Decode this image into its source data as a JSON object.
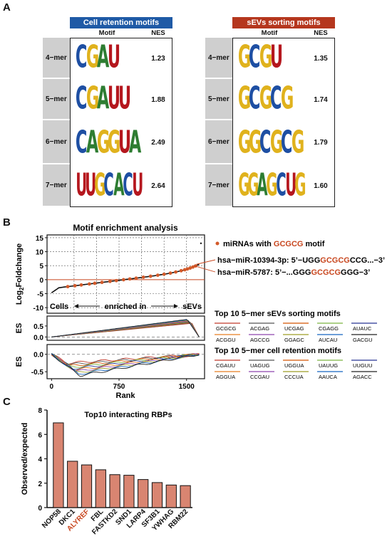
{
  "panels": {
    "a": "A",
    "b": "B",
    "c": "C"
  },
  "colors": {
    "A": "#2e7d32",
    "C": "#1e4fa3",
    "G": "#e0b21d",
    "U": "#b5171e",
    "highlight": "#c8461e"
  },
  "motif_tables": [
    {
      "title": "Cell retention motifs",
      "title_color": "#1f5aa6",
      "col_motif": "Motif",
      "col_nes": "NES",
      "rows": [
        {
          "k": "4−mer",
          "motif": "CGAU",
          "nes": "1.23"
        },
        {
          "k": "5−mer",
          "motif": "CGAUU",
          "nes": "1.88"
        },
        {
          "k": "6−mer",
          "motif": "CAGGUA",
          "nes": "2.49"
        },
        {
          "k": "7−mer",
          "motif": "UUGCACU",
          "nes": "2.64"
        }
      ]
    },
    {
      "title": "sEVs sorting motifs",
      "title_color": "#b5371e",
      "col_motif": "Motif",
      "col_nes": "NES",
      "rows": [
        {
          "k": "4−mer",
          "motif": "GCGU",
          "nes": "1.35"
        },
        {
          "k": "5−mer",
          "motif": "GCGCG",
          "nes": "1.74"
        },
        {
          "k": "6−mer",
          "motif": "GGCGCG",
          "nes": "1.79"
        },
        {
          "k": "7−mer",
          "motif": "GGAGCUG",
          "nes": "1.60"
        }
      ]
    }
  ],
  "enrichment": {
    "title": "Motif enrichment analysis",
    "ylabel_main": "Log",
    "ylabel_sub": "2",
    "ylabel_rest": "Foldchange",
    "yticks": [
      "15",
      "10",
      "5",
      "0",
      "-5",
      "-10"
    ],
    "ylim": [
      -12,
      16
    ],
    "region_left": "Cells",
    "region_mid": "enriched in",
    "region_right": "sEVs",
    "legend_prefix": "miRNAs with ",
    "legend_motif": "GCGCG",
    "legend_suffix": " motif",
    "annot1_pre": "hsa−miR-10394-3p: 5’−UGG",
    "annot1_motif": "GCGCG",
    "annot1_post": "CCG...−3’",
    "annot2_pre": "hsa−miR-5787: 5’−...GGG",
    "annot2_motif": "GCGCG",
    "annot2_post": "GGG−3’"
  },
  "es_sevs": {
    "ylabel": "ES",
    "yticks": [
      "0.5",
      "0.0"
    ],
    "legend_title": "Top 10 5−mer sEVs sorting motifs",
    "motifs": [
      {
        "name": "GCGCG",
        "color": "#c0392b"
      },
      {
        "name": "ACGAG",
        "color": "#555555"
      },
      {
        "name": "UCGAG",
        "color": "#d35400"
      },
      {
        "name": "CGAGG",
        "color": "#7cb342"
      },
      {
        "name": "AUAUC",
        "color": "#283593"
      },
      {
        "name": "ACGGU",
        "color": "#e67e22"
      },
      {
        "name": "AGCCG",
        "color": "#8e44ad"
      },
      {
        "name": "GGAGC",
        "color": "#9e9d24"
      },
      {
        "name": "AUCAU",
        "color": "#1565c0"
      },
      {
        "name": "GACGU",
        "color": "#212121"
      }
    ]
  },
  "es_cells": {
    "ylabel": "ES",
    "yticks": [
      "0.0",
      "-0.5"
    ],
    "legend_title": "Top 10 5−mer cell retention motifs",
    "motifs": [
      {
        "name": "CGAUU",
        "color": "#c0392b"
      },
      {
        "name": "UAGUG",
        "color": "#555555"
      },
      {
        "name": "UGGUA",
        "color": "#d35400"
      },
      {
        "name": "UAUUG",
        "color": "#7cb342"
      },
      {
        "name": "UUGUU",
        "color": "#283593"
      },
      {
        "name": "AGGUA",
        "color": "#e67e22"
      },
      {
        "name": "CCGAU",
        "color": "#8e44ad"
      },
      {
        "name": "CCCUA",
        "color": "#9e9d24"
      },
      {
        "name": "AAUCA",
        "color": "#1565c0"
      },
      {
        "name": "AGACC",
        "color": "#212121"
      }
    ]
  },
  "rank_axis": {
    "label": "Rank",
    "ticks": [
      "0",
      "750",
      "1500"
    ],
    "xlim": [
      -50,
      1700
    ]
  },
  "chart_data": {
    "type": "bar",
    "title": "Top10 interacting RBPs",
    "ylabel": "Observed/expected",
    "xlabel": "",
    "ylim": [
      0,
      8
    ],
    "yticks": [
      "0",
      "2",
      "4",
      "6",
      "8"
    ],
    "categories": [
      "NOP58",
      "DKC1",
      "ALYREF",
      "FBL",
      "FASTKD2",
      "SND1",
      "LARP4",
      "SF3B1",
      "YWHAG",
      "RBM22"
    ],
    "values": [
      6.95,
      3.8,
      3.5,
      3.1,
      2.7,
      2.65,
      2.3,
      2.05,
      1.85,
      1.8
    ],
    "highlight_category": "ALYREF",
    "bar_color": "#d98571"
  }
}
